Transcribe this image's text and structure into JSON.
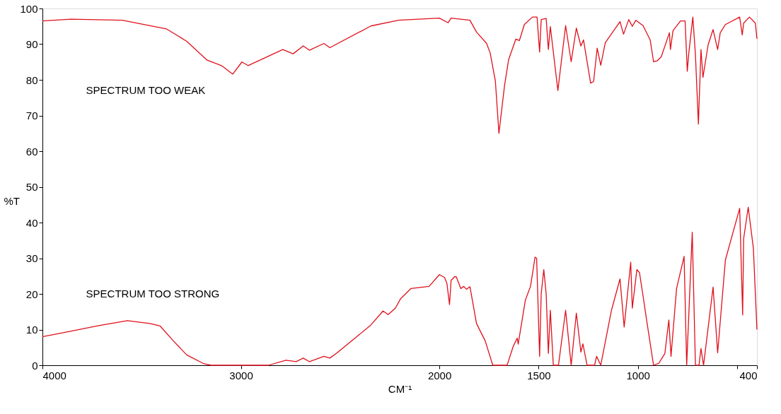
{
  "chart_data": {
    "type": "line",
    "xlabel": "CM⁻¹",
    "ylabel": "%T",
    "xlim": [
      4000,
      400
    ],
    "xticks": [
      4000,
      3000,
      2000,
      1500,
      1000,
      {
        "value": 500,
        "label": null
      },
      400
    ],
    "ylim": [
      0,
      100
    ],
    "yticks": [
      0,
      10,
      20,
      30,
      40,
      50,
      60,
      70,
      80,
      90,
      100
    ],
    "grid": false,
    "legend": false,
    "marker": "none",
    "line_style": "solid",
    "annotations": [
      "SPECTRUM TOO WEAK",
      "SPECTRUM TOO STRONG"
    ],
    "series": [
      {
        "color": "#e0101c",
        "x": [
          4000,
          3856,
          3598,
          3376,
          3273,
          3170,
          3098,
          3041,
          2995,
          2964,
          2789,
          2737,
          2686,
          2655,
          2582,
          2552,
          2345,
          2206,
          2000,
          1956,
          1941,
          1846,
          1813,
          1762,
          1744,
          1718,
          1700,
          1672,
          1651,
          1615,
          1597,
          1572,
          1531,
          1508,
          1495,
          1487,
          1462,
          1451,
          1441,
          1403,
          1364,
          1336,
          1310,
          1287,
          1274,
          1238,
          1223,
          1205,
          1187,
          1164,
          1090,
          1072,
          1046,
          1028,
          1010,
          974,
          938,
          921,
          903,
          882,
          841,
          836,
          823,
          785,
          762,
          751,
          744,
          723,
          710,
          695,
          682,
          672,
          646,
          621,
          598,
          585,
          559,
          487,
          474,
          467,
          438,
          408,
          400
        ],
        "values": [
          96.5,
          97,
          96.7,
          94.3,
          90.8,
          85.5,
          84,
          81.6,
          85,
          84,
          88.5,
          87.3,
          89.5,
          88.3,
          90.2,
          89,
          95.1,
          96.7,
          97.3,
          96,
          97.3,
          96.7,
          93.4,
          90.2,
          87.5,
          79.7,
          65,
          78.3,
          85.7,
          91.4,
          91,
          95.5,
          97.6,
          97.6,
          87.8,
          96.9,
          97.2,
          88.5,
          94.9,
          77,
          95.2,
          85.1,
          94.5,
          89.5,
          91.2,
          79.1,
          79.5,
          88.9,
          84.1,
          90.4,
          96.3,
          92.8,
          96.9,
          95,
          96.7,
          95.2,
          91.2,
          85.1,
          85.3,
          86.5,
          93.2,
          88.5,
          93.8,
          96.5,
          96.5,
          82.4,
          87.1,
          97.6,
          87.1,
          67.6,
          88.5,
          80.7,
          89.8,
          94.1,
          88.5,
          93.2,
          95.5,
          97.6,
          92.6,
          95.9,
          97.6,
          95.9,
          91.5
        ]
      },
      {
        "color": "#e0101c",
        "x": [
          4000,
          3890,
          3716,
          3572,
          3459,
          3407,
          3340,
          3273,
          3186,
          3150,
          2861,
          2773,
          2722,
          2686,
          2655,
          2582,
          2552,
          2515,
          2412,
          2345,
          2284,
          2258,
          2222,
          2196,
          2144,
          2052,
          2000,
          1974,
          1962,
          1949,
          1941,
          1923,
          1915,
          1892,
          1877,
          1864,
          1846,
          1813,
          1769,
          1731,
          1659,
          1628,
          1608,
          1603,
          1567,
          1541,
          1518,
          1510,
          1495,
          1487,
          1474,
          1462,
          1451,
          1441,
          1426,
          1400,
          1364,
          1336,
          1310,
          1287,
          1277,
          1256,
          1218,
          1208,
          1187,
          1133,
          1090,
          1069,
          1036,
          1028,
          1005,
          992,
          974,
          956,
          921,
          895,
          864,
          844,
          833,
          805,
          767,
          754,
          726,
          710,
          692,
          682,
          669,
          621,
          598,
          559,
          487,
          472,
          467,
          444,
          418,
          400
        ],
        "values": [
          8,
          9.2,
          11.1,
          12.5,
          11.7,
          11,
          6.8,
          2.9,
          0.4,
          0,
          0,
          1.4,
          1,
          2,
          1,
          2.5,
          2,
          3.5,
          8.2,
          11.3,
          15.2,
          14.2,
          16,
          18.6,
          21.5,
          22.1,
          25.4,
          24.6,
          22.9,
          17,
          23.8,
          24.8,
          24.8,
          21.5,
          22.1,
          21.3,
          22,
          11.7,
          6.8,
          0,
          0,
          5.3,
          7.6,
          5.9,
          18.2,
          22.1,
          30.3,
          30,
          2.5,
          20.1,
          26.8,
          20,
          3.3,
          15.4,
          0,
          0,
          15.4,
          0,
          14.6,
          3.7,
          6,
          0,
          0,
          2.5,
          0,
          15.4,
          24.2,
          10.7,
          28.9,
          16,
          26.8,
          26,
          19.5,
          12.7,
          0,
          0.5,
          3.3,
          12.7,
          2.5,
          21.5,
          30.5,
          0,
          37.3,
          0,
          0,
          4.7,
          0,
          21.9,
          3.5,
          29.5,
          44,
          14.1,
          35.5,
          44.3,
          32.8,
          10
        ]
      }
    ]
  }
}
